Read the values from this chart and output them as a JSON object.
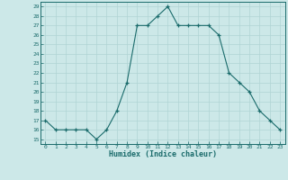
{
  "xlabel": "Humidex (Indice chaleur)",
  "ylabel": "",
  "background_color": "#cce8e8",
  "line_color": "#1a6b6b",
  "marker": "+",
  "marker_color": "#1a6b6b",
  "x": [
    0,
    1,
    2,
    3,
    4,
    5,
    6,
    7,
    8,
    9,
    10,
    11,
    12,
    13,
    14,
    15,
    16,
    17,
    18,
    19,
    20,
    21,
    22,
    23
  ],
  "y": [
    17,
    16,
    16,
    16,
    16,
    15,
    16,
    18,
    21,
    27,
    27,
    28,
    29,
    27,
    27,
    27,
    27,
    26,
    22,
    21,
    20,
    18,
    17,
    16
  ],
  "ylim": [
    15,
    29
  ],
  "yticks": [
    15,
    16,
    17,
    18,
    19,
    20,
    21,
    22,
    23,
    24,
    25,
    26,
    27,
    28,
    29
  ],
  "grid_color": "#b0d4d4",
  "tick_color": "#1a6b6b",
  "label_color": "#1a6b6b",
  "font_family": "monospace"
}
